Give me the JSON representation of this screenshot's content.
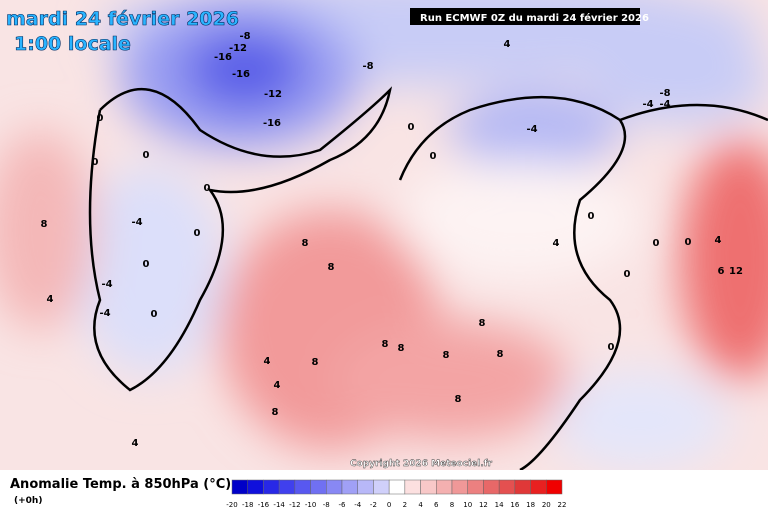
{
  "header": {
    "title": "mardi 24 février 2026",
    "time": "1:00 locale",
    "run": "Run ECMWF 0Z du mardi 24 février 2026"
  },
  "map": {
    "contour_labels": [
      -8,
      -12,
      -16,
      -16,
      -12,
      -16,
      -8,
      -4,
      -8,
      -4,
      -4,
      4,
      0,
      0,
      0,
      0,
      -4,
      0,
      0,
      -4,
      -4,
      0,
      8,
      4,
      8,
      8,
      4,
      4,
      8,
      8,
      4,
      8,
      8,
      8,
      8,
      8,
      8,
      4,
      0,
      0,
      0,
      0,
      0,
      4,
      6,
      12,
      0,
      0
    ],
    "copyright": "Copyright 2026 Meteociel.fr"
  },
  "legend": {
    "title": "Anomalie Temp. à 850hPa (°C)",
    "step": "(+0h)",
    "ticks": [
      -20,
      -18,
      -16,
      -14,
      -12,
      -10,
      -8,
      -6,
      -4,
      -2,
      0,
      2,
      4,
      6,
      8,
      10,
      12,
      14,
      16,
      18,
      20,
      22
    ],
    "colors": [
      "#0000c8",
      "#1010dc",
      "#2828e6",
      "#4040ee",
      "#5858f0",
      "#7070f2",
      "#8888f4",
      "#a0a0f6",
      "#b8b8f8",
      "#d0d0fa",
      "#ffffff",
      "#fce0e0",
      "#f8c8c8",
      "#f4b0b0",
      "#f09898",
      "#ec8080",
      "#e86868",
      "#e45050",
      "#e03838",
      "#e82020",
      "#f00000"
    ]
  }
}
